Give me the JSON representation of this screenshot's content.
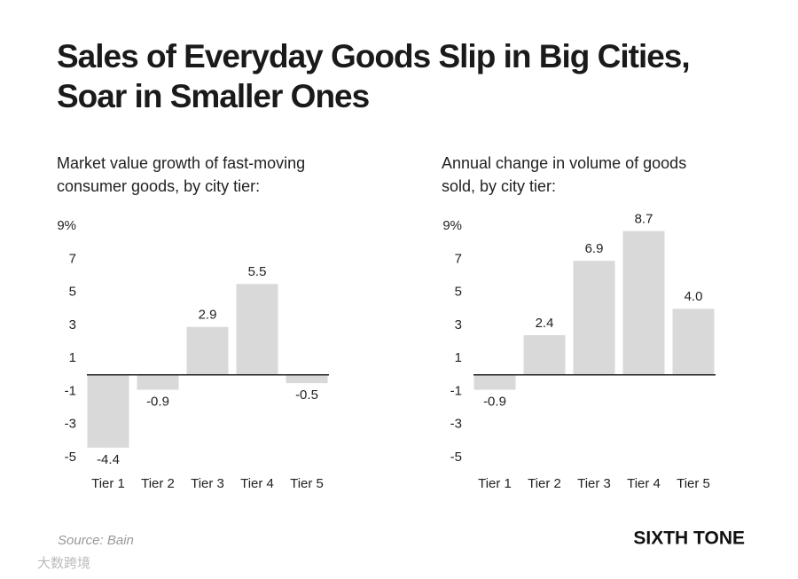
{
  "title": [
    "Sales of Everyday Goods Slip in Big Cities,",
    "Soar in Smaller Ones"
  ],
  "chart_data": [
    {
      "type": "bar",
      "subtitle": [
        "Market value growth of fast-moving",
        "consumer goods, by city tier:"
      ],
      "categories": [
        "Tier 1",
        "Tier 2",
        "Tier 3",
        "Tier 4",
        "Tier 5"
      ],
      "values": [
        -4.4,
        -0.9,
        2.9,
        5.5,
        -0.5
      ],
      "value_labels": [
        "-4.4",
        "-0.9",
        "2.9",
        "5.5",
        "-0.5"
      ],
      "color": "#d9d9d9",
      "ylim": [
        -5,
        9
      ],
      "yticks": [
        {
          "value": 9,
          "label": "9%"
        },
        7,
        5,
        3,
        1,
        -1,
        -3,
        -5
      ]
    },
    {
      "type": "bar",
      "subtitle": [
        "Annual change in volume of goods",
        "sold, by city tier:"
      ],
      "categories": [
        "Tier 1",
        "Tier 2",
        "Tier 3",
        "Tier 4",
        "Tier 5"
      ],
      "values": [
        -0.9,
        2.4,
        6.9,
        8.7,
        4.0
      ],
      "value_labels": [
        "-0.9",
        "2.4",
        "6.9",
        "8.7",
        "4.0"
      ],
      "color": "#d9d9d9",
      "ylim": [
        -5,
        9
      ],
      "yticks": [
        {
          "value": 9,
          "label": "9%"
        },
        7,
        5,
        3,
        1,
        -1,
        -3,
        -5
      ]
    }
  ],
  "source": "Source: Bain",
  "brand": "SIXTH TONE",
  "watermark": "大数跨境"
}
